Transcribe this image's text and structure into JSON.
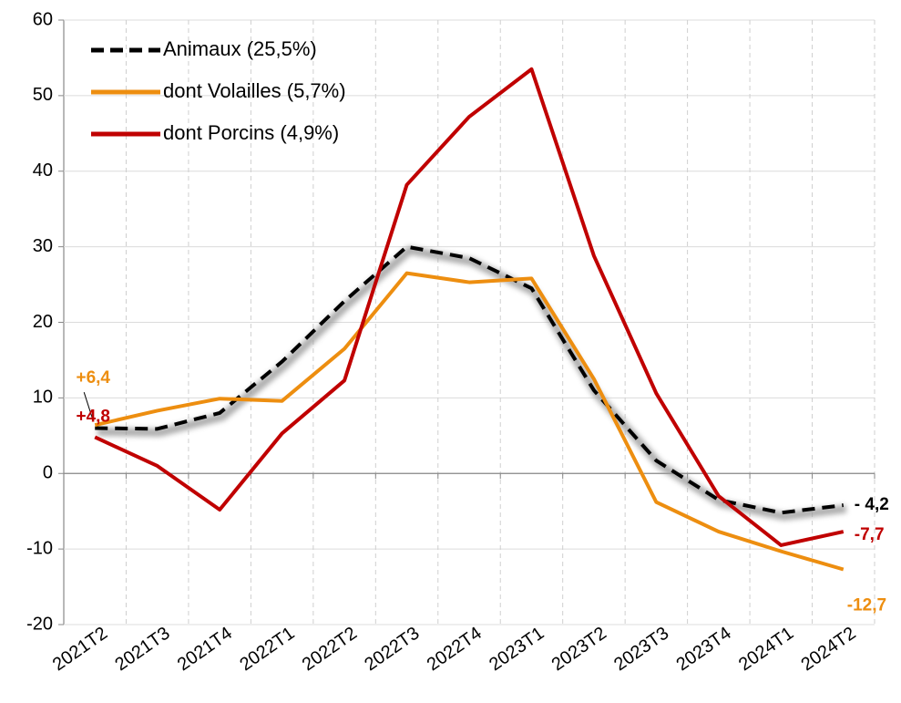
{
  "chart_data": {
    "type": "line",
    "categories": [
      "2021T2",
      "2021T3",
      "2021T4",
      "2022T1",
      "2022T2",
      "2022T3",
      "2022T4",
      "2023T1",
      "2023T2",
      "2023T3",
      "2023T4",
      "2024T1",
      "2024T2"
    ],
    "series": [
      {
        "name": "Animaux (25,5%)",
        "color": "#000000",
        "style": "dashed",
        "values": [
          6.0,
          5.9,
          8.0,
          14.8,
          22.8,
          30.0,
          28.5,
          24.5,
          11.0,
          1.7,
          -3.5,
          -5.2,
          -4.2
        ],
        "value_labels": [
          null,
          null,
          null,
          null,
          null,
          null,
          null,
          null,
          null,
          null,
          null,
          null,
          "- 4,2"
        ]
      },
      {
        "name": "dont Volailles (5,7%)",
        "color": "#ED8E10",
        "style": "solid",
        "values": [
          6.4,
          8.3,
          9.9,
          9.6,
          16.5,
          26.5,
          25.3,
          25.8,
          12.5,
          -3.8,
          -7.7,
          -10.3,
          -12.7
        ],
        "value_labels": [
          "+6,4",
          null,
          null,
          null,
          null,
          null,
          null,
          null,
          null,
          null,
          null,
          null,
          "-12,7"
        ]
      },
      {
        "name": "dont Porcins (4,9%)",
        "color": "#C00000",
        "style": "solid",
        "values": [
          4.8,
          1.0,
          -4.8,
          5.3,
          12.3,
          38.2,
          47.2,
          53.5,
          28.8,
          10.6,
          -3.0,
          -9.5,
          -7.7
        ],
        "value_labels": [
          "+4,8",
          null,
          null,
          null,
          null,
          null,
          null,
          null,
          null,
          null,
          null,
          null,
          "-7,7"
        ]
      }
    ],
    "ylim": [
      -20,
      60
    ],
    "yticks": [
      -20,
      -10,
      0,
      10,
      20,
      30,
      40,
      50,
      60
    ],
    "grid": true,
    "legend": "top-left"
  }
}
